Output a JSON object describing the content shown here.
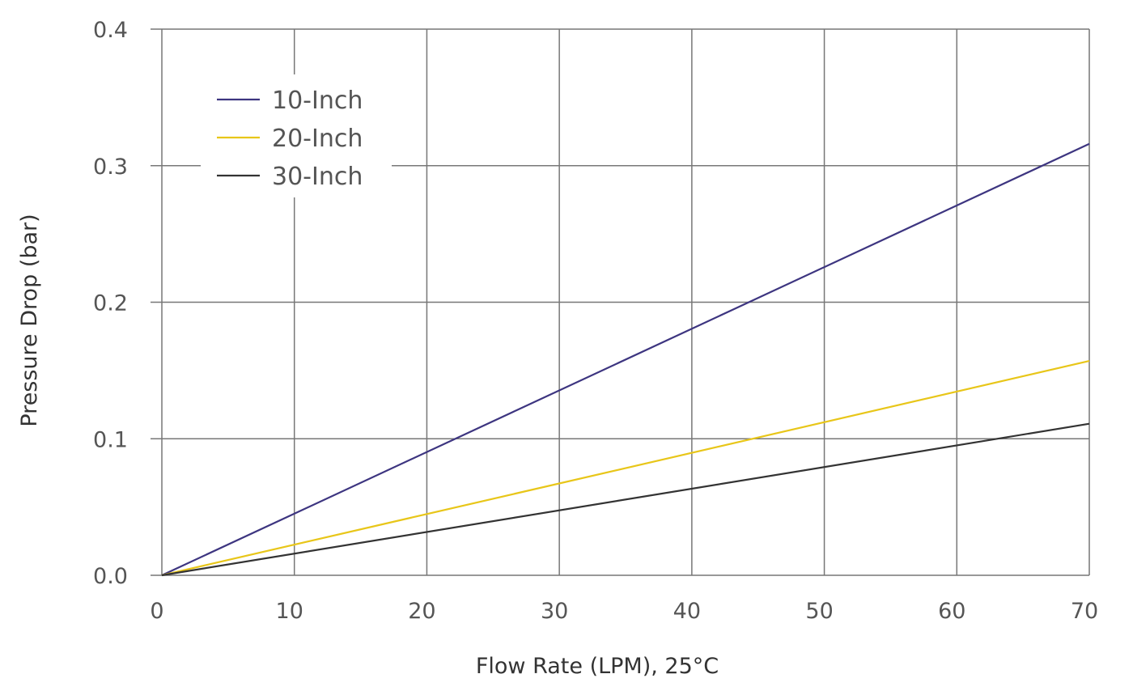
{
  "chart_data": {
    "type": "line",
    "title": "",
    "xlabel": "Flow Rate (LPM), 25°C",
    "ylabel": "Pressure Drop (bar)",
    "xlim": [
      0,
      70
    ],
    "ylim": [
      0,
      0.4
    ],
    "x_ticks": [
      "0",
      "10",
      "20",
      "30",
      "40",
      "50",
      "60",
      "70"
    ],
    "y_ticks": [
      "0.0",
      "0.1",
      "0.2",
      "0.3",
      "0.4"
    ],
    "grid": true,
    "legend_position": "top-left",
    "series": [
      {
        "name": "10-Inch",
        "color": "#3d3580",
        "x": [
          0,
          70
        ],
        "y": [
          0,
          0.316
        ]
      },
      {
        "name": "20-Inch",
        "color": "#e8c619",
        "x": [
          0,
          70
        ],
        "y": [
          0,
          0.157
        ]
      },
      {
        "name": "30-Inch",
        "color": "#333333",
        "x": [
          0,
          70
        ],
        "y": [
          0,
          0.111
        ]
      }
    ]
  }
}
